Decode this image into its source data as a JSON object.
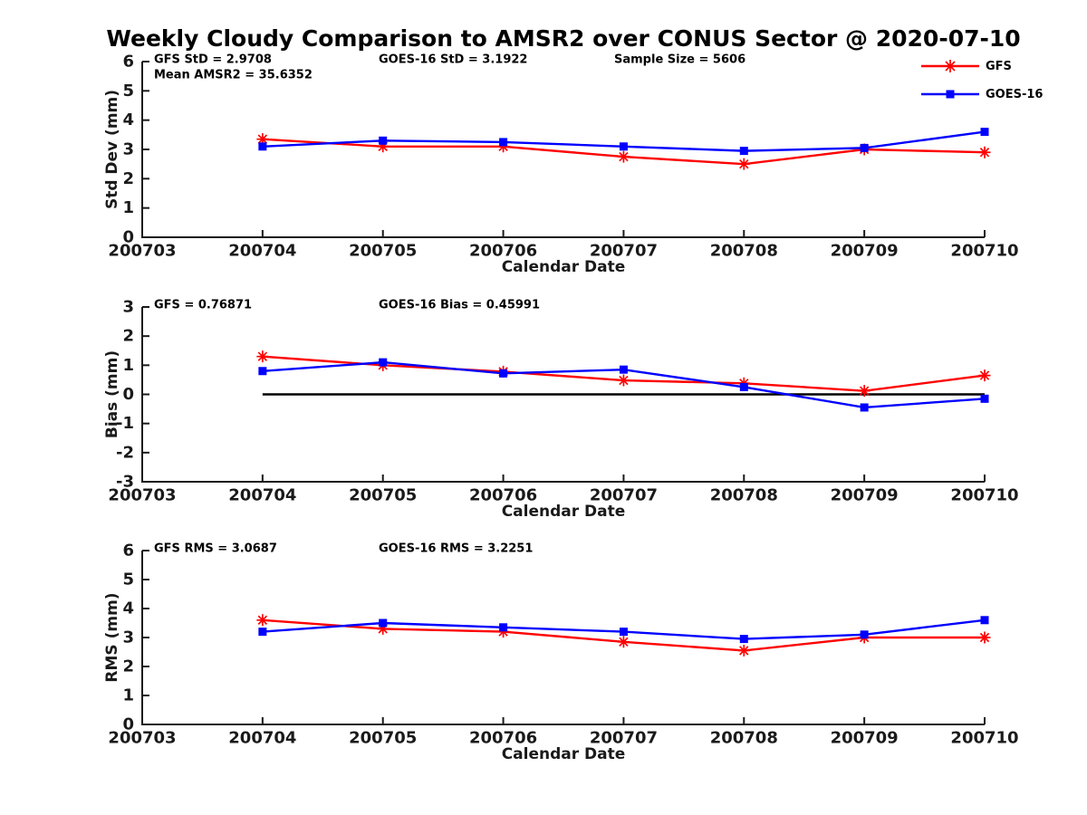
{
  "title": "Weekly Cloudy Comparison to AMSR2 over CONUS Sector @ 2020-07-10",
  "colors": {
    "gfs": "#ff0000",
    "goes16": "#0000ff",
    "axis": "#1a1a1a",
    "zero_line": "#000000",
    "background": "#ffffff"
  },
  "legend": {
    "items": [
      {
        "label": "GFS",
        "color": "#ff0000",
        "marker": "asterisk"
      },
      {
        "label": "GOES-16",
        "color": "#0000ff",
        "marker": "square"
      }
    ]
  },
  "chart_data": [
    {
      "type": "line",
      "panel": "std-dev",
      "xlabel": "Calendar Date",
      "ylabel": "Std Dev (mm)",
      "ylim": [
        0,
        6
      ],
      "yticks": [
        0,
        1,
        2,
        3,
        4,
        5,
        6
      ],
      "categories": [
        "200703",
        "200704",
        "200705",
        "200706",
        "200707",
        "200708",
        "200709",
        "200710"
      ],
      "grid": false,
      "zero_line": false,
      "annotations": [
        {
          "text": "GFS StD = 2.9708",
          "col": 0,
          "row": 0
        },
        {
          "text": "GOES-16 StD = 3.1922",
          "col": 1,
          "row": 0
        },
        {
          "text": "Sample Size = 5606",
          "col": 2,
          "row": 0
        },
        {
          "text": "Mean AMSR2 = 35.6352",
          "col": 0,
          "row": 1
        }
      ],
      "series": [
        {
          "name": "GFS",
          "color": "#ff0000",
          "marker": "asterisk",
          "x": [
            "200704",
            "200705",
            "200706",
            "200707",
            "200708",
            "200709",
            "200710"
          ],
          "values": [
            3.35,
            3.1,
            3.1,
            2.75,
            2.5,
            3.0,
            2.9
          ]
        },
        {
          "name": "GOES-16",
          "color": "#0000ff",
          "marker": "square",
          "x": [
            "200704",
            "200705",
            "200706",
            "200707",
            "200708",
            "200709",
            "200710"
          ],
          "values": [
            3.1,
            3.3,
            3.25,
            3.1,
            2.95,
            3.05,
            3.6
          ]
        }
      ]
    },
    {
      "type": "line",
      "panel": "bias",
      "xlabel": "Calendar Date",
      "ylabel": "Bias (mm)",
      "ylim": [
        -3,
        3
      ],
      "yticks": [
        -3,
        -2,
        -1,
        0,
        1,
        2,
        3
      ],
      "categories": [
        "200703",
        "200704",
        "200705",
        "200706",
        "200707",
        "200708",
        "200709",
        "200710"
      ],
      "grid": false,
      "zero_line": true,
      "annotations": [
        {
          "text": "GFS = 0.76871",
          "col": 0,
          "row": 0
        },
        {
          "text": "GOES-16 Bias  = 0.45991",
          "col": 1,
          "row": 0
        }
      ],
      "series": [
        {
          "name": "GFS",
          "color": "#ff0000",
          "marker": "asterisk",
          "x": [
            "200704",
            "200705",
            "200706",
            "200707",
            "200708",
            "200709",
            "200710"
          ],
          "values": [
            1.3,
            1.0,
            0.78,
            0.48,
            0.38,
            0.12,
            0.65
          ]
        },
        {
          "name": "GOES-16",
          "color": "#0000ff",
          "marker": "square",
          "x": [
            "200704",
            "200705",
            "200706",
            "200707",
            "200708",
            "200709",
            "200710"
          ],
          "values": [
            0.8,
            1.1,
            0.72,
            0.85,
            0.25,
            -0.45,
            -0.15
          ]
        }
      ]
    },
    {
      "type": "line",
      "panel": "rms",
      "xlabel": "Calendar Date",
      "ylabel": "RMS (mm)",
      "ylim": [
        0,
        6
      ],
      "yticks": [
        0,
        1,
        2,
        3,
        4,
        5,
        6
      ],
      "categories": [
        "200703",
        "200704",
        "200705",
        "200706",
        "200707",
        "200708",
        "200709",
        "200710"
      ],
      "grid": false,
      "zero_line": false,
      "annotations": [
        {
          "text": "GFS RMS = 3.0687",
          "col": 0,
          "row": 0
        },
        {
          "text": "GOES-16 RMS = 3.2251",
          "col": 1,
          "row": 0
        }
      ],
      "series": [
        {
          "name": "GFS",
          "color": "#ff0000",
          "marker": "asterisk",
          "x": [
            "200704",
            "200705",
            "200706",
            "200707",
            "200708",
            "200709",
            "200710"
          ],
          "values": [
            3.6,
            3.3,
            3.2,
            2.85,
            2.55,
            3.0,
            3.0
          ]
        },
        {
          "name": "GOES-16",
          "color": "#0000ff",
          "marker": "square",
          "x": [
            "200704",
            "200705",
            "200706",
            "200707",
            "200708",
            "200709",
            "200710"
          ],
          "values": [
            3.2,
            3.5,
            3.35,
            3.2,
            2.95,
            3.1,
            3.6
          ]
        }
      ]
    }
  ]
}
